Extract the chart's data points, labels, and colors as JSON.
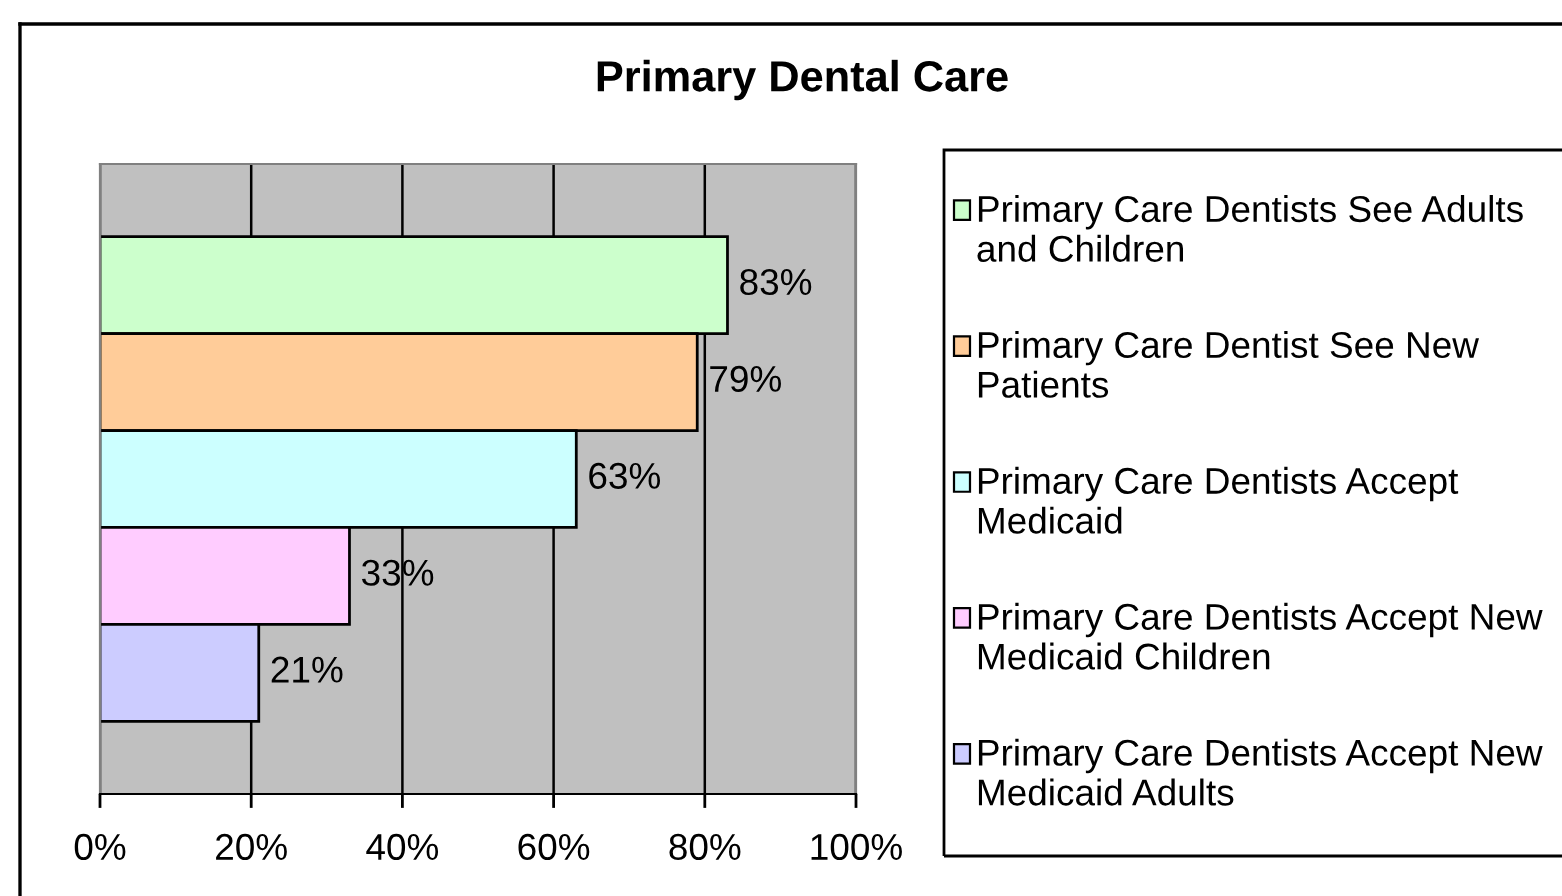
{
  "chart_data": {
    "type": "bar",
    "orientation": "horizontal",
    "title": "Primary Dental Care",
    "categories": [
      null
    ],
    "series": [
      {
        "name": "Primary Care Dentists See Adults and Children",
        "color": "#ccffcc",
        "values": [
          83
        ],
        "value_labels": [
          "83%"
        ]
      },
      {
        "name": "Primary Care Dentist See New Patients",
        "color": "#ffcc99",
        "values": [
          79
        ],
        "value_labels": [
          "79%"
        ]
      },
      {
        "name": "Primary Care Dentists Accept Medicaid",
        "color": "#ccffff",
        "values": [
          63
        ],
        "value_labels": [
          "63%"
        ]
      },
      {
        "name": "Primary Care Dentists Accept New Medicaid Children",
        "color": "#ffccff",
        "values": [
          33
        ],
        "value_labels": [
          "33%"
        ]
      },
      {
        "name": "Primary Care Dentists Accept New Medicaid Adults",
        "color": "#ccccff",
        "values": [
          21
        ],
        "value_labels": [
          "21%"
        ]
      }
    ],
    "xlim": [
      0,
      100
    ],
    "xticks": [
      {
        "value": 0,
        "label": "0%"
      },
      {
        "value": 20,
        "label": "20%"
      },
      {
        "value": 40,
        "label": "40%"
      },
      {
        "value": 60,
        "label": "60%"
      },
      {
        "value": 80,
        "label": "80%"
      },
      {
        "value": 100,
        "label": "100%"
      }
    ],
    "grid": "x",
    "legend": "right",
    "tick_labels": "x"
  }
}
